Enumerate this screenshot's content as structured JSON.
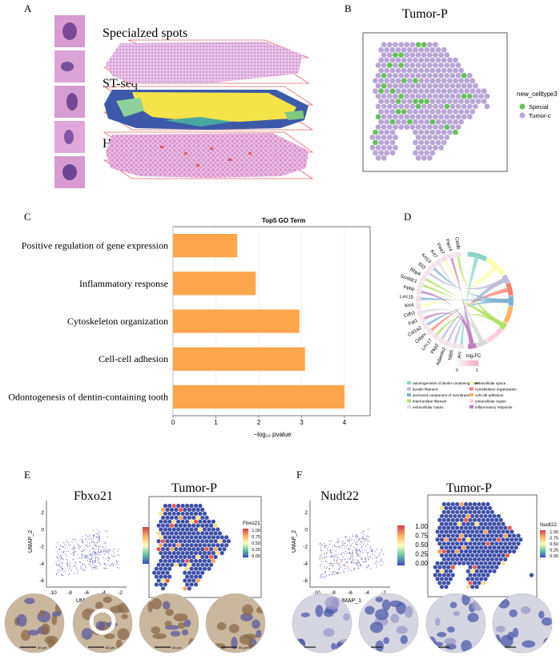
{
  "panels": {
    "a": {
      "letter": "A",
      "layers": [
        "Specialzed spots",
        "ST-seq",
        "HE"
      ]
    },
    "b": {
      "letter": "B",
      "title": "Tumor-P",
      "legend_title": "new_celltype3",
      "legend": [
        {
          "label": "Special",
          "color": "#6abf5e"
        },
        {
          "label": "Tumor-c",
          "color": "#b9a6d6"
        }
      ]
    },
    "c": {
      "letter": "C"
    },
    "d": {
      "letter": "D",
      "genes": [
        "Cstdb",
        "Pacr4",
        "Vwa7",
        "Krt7",
        "Krt13",
        "Il33",
        "Rbp4",
        "Scrddc1",
        "Ppbp",
        "Lrrc15",
        "Krt4",
        "Cdh3",
        "Fat1",
        "Col1a2",
        "Odam",
        "Lrrc17",
        "Pkp2",
        "Adamts2",
        "Ntb5",
        "Arc"
      ],
      "logfc_label": "log₂FC",
      "logfc_min": "0",
      "logfc_max": "1",
      "legend": [
        {
          "label": "odontogenesis of dentin-containing tooth",
          "color": "#8fd3c7"
        },
        {
          "label": "extracellular space",
          "color": "#ffffb3"
        },
        {
          "label": "keratin filament",
          "color": "#bebada"
        },
        {
          "label": "cytoskeleton organization",
          "color": "#fb8072"
        },
        {
          "label": "anchored component of membrane",
          "color": "#80b1d3"
        },
        {
          "label": "cell-cell adhesion",
          "color": "#fdb462"
        },
        {
          "label": "intermediate filament",
          "color": "#b3de69"
        },
        {
          "label": "extracellular region",
          "color": "#fccde5"
        },
        {
          "label": "extracellular matrix",
          "color": "#d9d9d9"
        },
        {
          "label": "inflammatory response",
          "color": "#bc80bd"
        }
      ]
    },
    "e": {
      "letter": "E",
      "gene": "Fbxo21",
      "title": "Tumor-P",
      "legend_title": "Fbxo21",
      "umap_x": "UMAP_1",
      "umap_y": "UMAP_2",
      "ticks": [
        "1.00",
        "0.75",
        "0.50",
        "0.25",
        "0.00"
      ],
      "x_ticks": [
        "-10",
        "-8",
        "-6",
        "-4",
        "-2"
      ],
      "y_ticks": [
        "2",
        "0",
        "-2",
        "-4",
        "-6"
      ]
    },
    "f": {
      "letter": "F",
      "gene": "Nudt22",
      "title": "Tumor-P",
      "legend_title": "Nudt22",
      "umap_x": "UMAP_1",
      "umap_y": "UMAP_2",
      "ticks": [
        "1.00",
        "0.75",
        "0.50",
        "0.25",
        "0.00"
      ],
      "x_ticks": [
        "-10",
        "-8",
        "-6",
        "-4",
        "-2"
      ],
      "y_ticks": [
        "2",
        "0",
        "-2",
        "-4",
        "-6"
      ]
    },
    "scale_bars": [
      "50 μm",
      "50 μm",
      "50 μm",
      "50 μm"
    ]
  },
  "chart_data": {
    "type": "bar",
    "orientation": "horizontal",
    "title": "Top5 GO Term",
    "xlabel": "−log₁₀ pvalue",
    "ylabel": "",
    "xlim": [
      0,
      4.6
    ],
    "xticks": [
      0,
      1,
      2,
      3,
      4
    ],
    "grid": true,
    "bar_color": "#ffa64d",
    "categories": [
      "Positive regulation of gene expression",
      "Inflammatory response",
      "Cytoskeleton organization",
      "Cell-cell adhesion",
      "Odontogenesis of dentin-containing tooth"
    ],
    "values": [
      1.5,
      1.93,
      2.95,
      3.08,
      4.0
    ]
  }
}
